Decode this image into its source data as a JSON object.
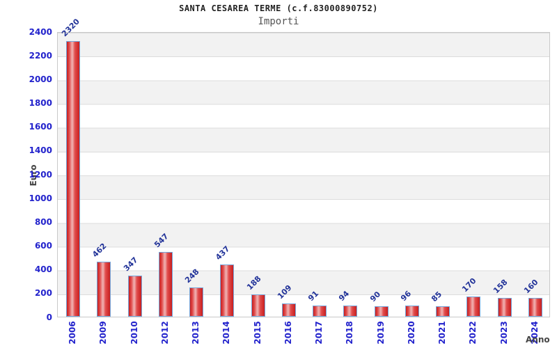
{
  "title": "SANTA CESAREA TERME (c.f.83000890752)",
  "subtitle": "Importi",
  "chart_data": {
    "type": "bar",
    "title": "SANTA CESAREA TERME (c.f.83000890752)",
    "subtitle": "Importi",
    "xlabel": "Anno",
    "ylabel": "Euro",
    "categories": [
      "2006",
      "2009",
      "2010",
      "2012",
      "2013",
      "2014",
      "2015",
      "2016",
      "2017",
      "2018",
      "2019",
      "2020",
      "2021",
      "2022",
      "2023",
      "2024"
    ],
    "values": [
      2320,
      462,
      347,
      547,
      248,
      437,
      188,
      109,
      91,
      94,
      90,
      96,
      85,
      170,
      158,
      160
    ],
    "ylim": [
      0,
      2400
    ],
    "yticks": [
      0,
      200,
      400,
      600,
      800,
      1000,
      1200,
      1400,
      1600,
      1800,
      2000,
      2200,
      2400
    ],
    "grid": true,
    "legend_position": "none",
    "colors": {
      "bar_fill": "#e22020",
      "bar_highlight": "#efaaaa",
      "bar_border": "#74a7dc",
      "tick_label": "#2222cc",
      "value_label": "#223399",
      "band_gray": "#f2f2f2",
      "grid_line": "#dcdcdc",
      "axis_title_text": "#444444",
      "title_text": "#222222",
      "subtitle_text": "#555555"
    }
  }
}
